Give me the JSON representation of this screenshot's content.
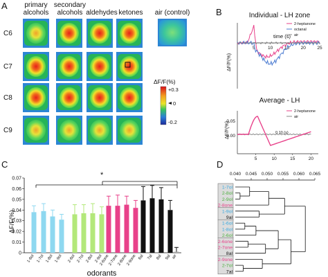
{
  "panels": {
    "A": {
      "letter": "A",
      "columns": [
        "primary\nalcohols",
        "secondary\nalcohols",
        "aldehydes",
        "ketones",
        "air (control)"
      ],
      "rows": [
        "C6",
        "C7",
        "C8",
        "C9"
      ],
      "colorbar": {
        "title": "ΔF/F(%)",
        "max": "+0.3",
        "mid": "0",
        "min": "-0.2"
      }
    },
    "B": {
      "letter": "B",
      "top": {
        "title": "Individual - LH zone",
        "xlabel": "time (s)",
        "ylabel": "ΔF/F(%)",
        "xticks": [
          "5",
          "10",
          "15",
          "20",
          "25"
        ],
        "legend": [
          "2-heptanone",
          "octanal",
          "air"
        ],
        "colors": [
          "#e8418a",
          "#4b7bd1",
          "#888888"
        ]
      },
      "bottom": {
        "title": "Average - LH",
        "ylabel": "ΔF/F(%)",
        "xticks": [
          "5",
          "10",
          "15",
          "20"
        ],
        "yticks": [
          "0.05",
          "0.00"
        ],
        "legend": [
          "2-heptanone",
          "air"
        ],
        "colors": [
          "#e8418a",
          "#888888"
        ],
        "annotation": "0.10 (s)"
      }
    },
    "C": {
      "letter": "C",
      "significance": "*"
    },
    "D": {
      "letter": "D"
    }
  },
  "chart_data": [
    {
      "type": "bar",
      "ylabel": "ΔF/F(%)",
      "xlabel": "odorants",
      "ylim": [
        0,
        0.07
      ],
      "yticks": [
        0,
        0.01,
        0.02,
        0.03,
        0.04,
        0.05,
        0.06,
        0.07
      ],
      "ytick_labels": [
        "0",
        "0.01",
        "0.02",
        "0.03",
        "0.04",
        "0.05",
        "0.06",
        "0.07"
      ],
      "categories": [
        "1-6ol",
        "1-7ol",
        "1-8ol",
        "1-9ol",
        "2-6ol",
        "2-7ol",
        "2-8ol",
        "2-9ol",
        "2-6one",
        "2-7one",
        "2-8one",
        "2-9one",
        "6al",
        "7al",
        "8al",
        "9al",
        "air"
      ],
      "values": [
        0.038,
        0.039,
        0.034,
        0.031,
        0.036,
        0.037,
        0.037,
        0.036,
        0.044,
        0.044,
        0.045,
        0.042,
        0.049,
        0.051,
        0.05,
        0.04,
        0.001
      ],
      "errors": [
        0.006,
        0.007,
        0.006,
        0.005,
        0.009,
        0.008,
        0.009,
        0.007,
        0.009,
        0.01,
        0.008,
        0.007,
        0.013,
        0.012,
        0.011,
        0.009,
        0.004
      ],
      "colors": [
        "#8ed8f0",
        "#8ed8f0",
        "#8ed8f0",
        "#8ed8f0",
        "#b3e87a",
        "#b3e87a",
        "#b3e87a",
        "#b3e87a",
        "#e8418a",
        "#e8418a",
        "#e8418a",
        "#e8418a",
        "#111111",
        "#111111",
        "#111111",
        "#111111",
        "#aaaaaa"
      ]
    },
    {
      "type": "dendrogram",
      "xlim": [
        0.04,
        0.065
      ],
      "xticks": [
        0.04,
        0.045,
        0.05,
        0.055,
        0.06,
        0.065
      ],
      "xtick_labels": [
        "0.040",
        "0.045",
        "0.050",
        "0.055",
        "0.060",
        "0.065"
      ],
      "leaves": [
        {
          "label": "1-7ol",
          "color": "#39a9e0"
        },
        {
          "label": "2-8ol",
          "color": "#4caf3f"
        },
        {
          "label": "2-9ol",
          "color": "#4caf3f"
        },
        {
          "label": "2-8one",
          "color": "#e8418a"
        },
        {
          "label": "1-9ol",
          "color": "#39a9e0"
        },
        {
          "label": "9al",
          "color": "#111111"
        },
        {
          "label": "1-6ol",
          "color": "#39a9e0"
        },
        {
          "label": "1-8ol",
          "color": "#39a9e0"
        },
        {
          "label": "2-6ol",
          "color": "#4caf3f"
        },
        {
          "label": "2-6one",
          "color": "#e8418a"
        },
        {
          "label": "2-7one",
          "color": "#e8418a"
        },
        {
          "label": "8al",
          "color": "#111111"
        },
        {
          "label": "2-9one",
          "color": "#e8418a"
        },
        {
          "label": "2-7ol",
          "color": "#4caf3f"
        },
        {
          "label": "7al",
          "color": "#111111"
        }
      ]
    }
  ]
}
